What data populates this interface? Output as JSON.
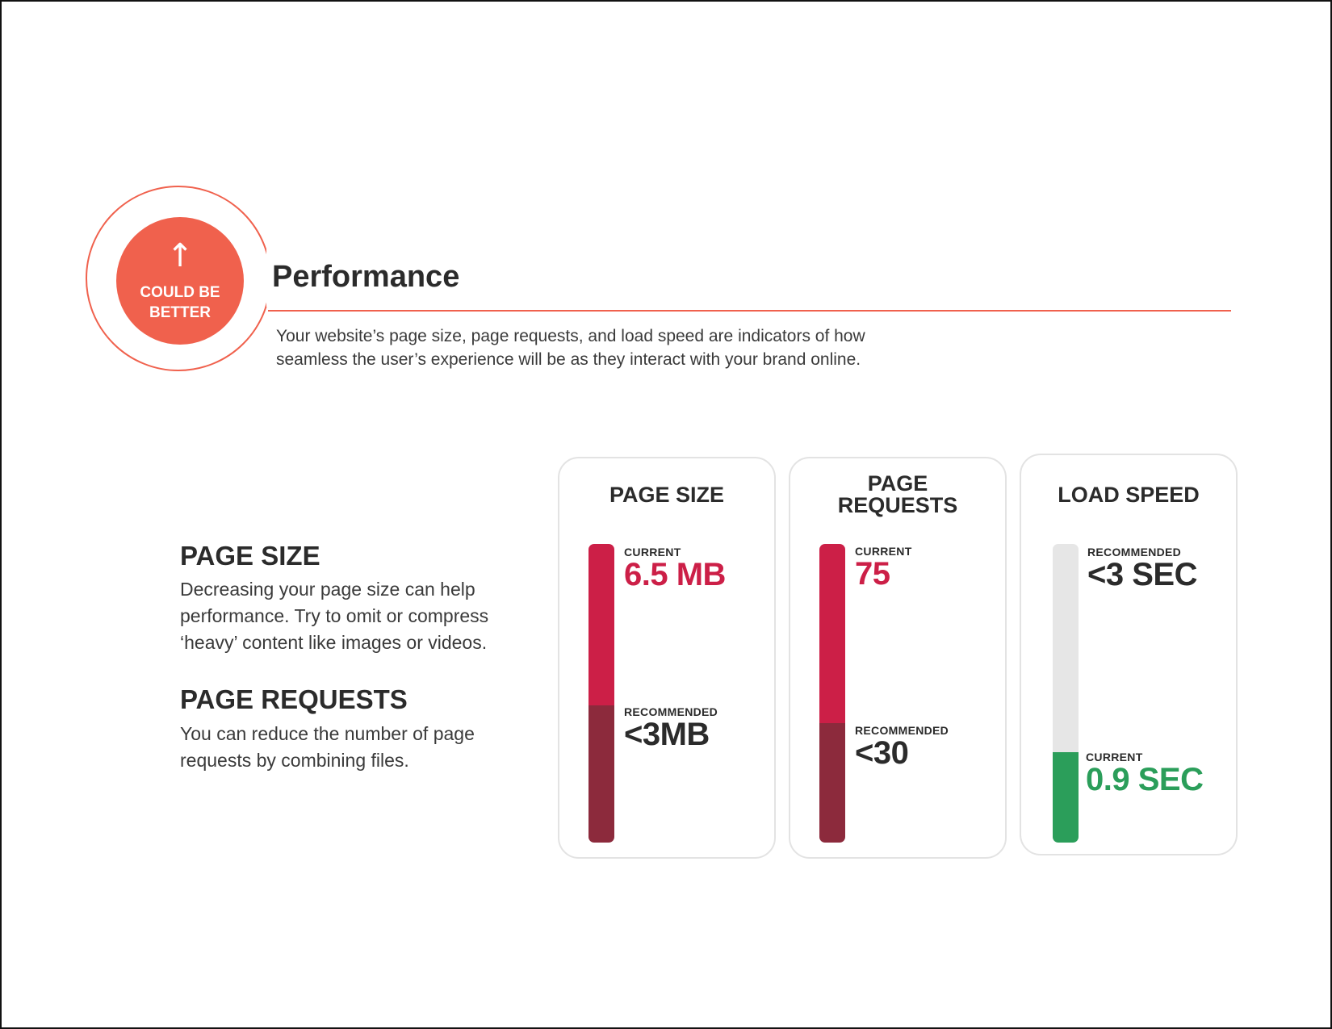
{
  "badge": {
    "icon": "arrow-up-icon",
    "label": "COULD BE BETTER",
    "color": "#f0614d"
  },
  "section": {
    "title": "Performance",
    "intro": "Your website’s page size, page requests, and load speed are indicators of how seamless the user’s experience will be as they interact with your brand online."
  },
  "explanations": [
    {
      "heading": "PAGE SIZE",
      "text": "Decreasing your page size can help performance. Try to omit or compress ‘heavy’ content like images or videos."
    },
    {
      "heading": "PAGE REQUESTS",
      "text": "You can reduce the number of page requests by combining files."
    }
  ],
  "metrics": [
    {
      "title": "PAGE SIZE",
      "current_label": "CURRENT",
      "current_value": "6.5 MB",
      "recommended_label": "RECOMMENDED",
      "recommended_value": "<3MB",
      "current_numeric": 6.5,
      "recommended_numeric": 3,
      "status": "over"
    },
    {
      "title": "PAGE REQUESTS",
      "current_label": "CURRENT",
      "current_value": "75",
      "recommended_label": "RECOMMENDED",
      "recommended_value": "<30",
      "current_numeric": 75,
      "recommended_numeric": 30,
      "status": "over"
    },
    {
      "title": "LOAD SPEED",
      "current_label": "CURRENT",
      "current_value": "0.9 SEC",
      "recommended_label": "RECOMMENDED",
      "recommended_value": "<3 SEC",
      "current_numeric": 0.9,
      "recommended_numeric": 3,
      "status": "good"
    }
  ],
  "colors": {
    "accent": "#f0614d",
    "over_value": "#cc1f47",
    "over_bar": "#cc1f47",
    "recommended_bar": "#8c2a3c",
    "good": "#2b9e5a",
    "track": "#e6e6e6"
  }
}
